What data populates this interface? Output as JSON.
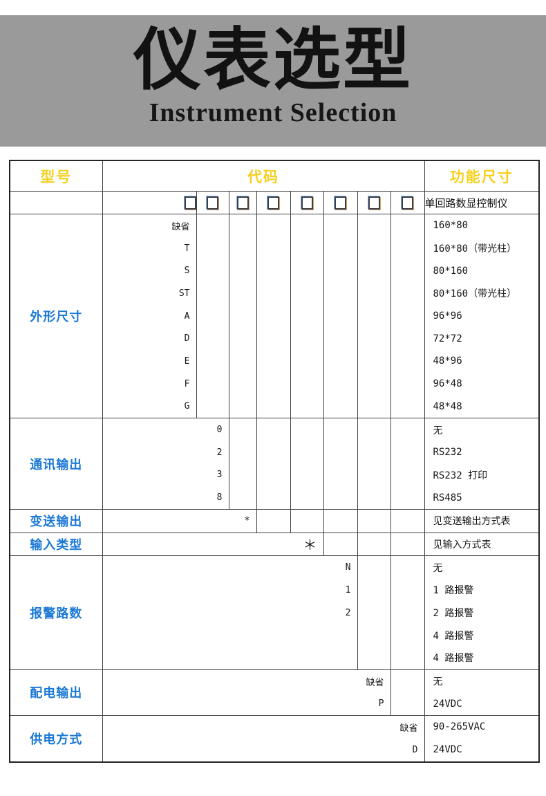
{
  "banner": {
    "title": "仪表选型",
    "subtitle": "Instrument Selection",
    "bg_color": "#999a99"
  },
  "table": {
    "header": {
      "model": "型号",
      "code": "代码",
      "function": "功能尺寸",
      "bg_color": "#cb3245",
      "text_color": "#f5d020"
    },
    "label_color": "#1a78d6",
    "checkbox_row": {
      "checkbox_count": 8,
      "function": "单回路数显控制仪"
    },
    "sections": [
      {
        "id": "shape-size",
        "label": "外形尺寸",
        "code_span": 1,
        "codes": [
          "缺省",
          "T",
          "S",
          "ST",
          "A",
          "D",
          "E",
          "F",
          "G"
        ],
        "functions": [
          "160*80",
          "160*80（带光柱）",
          "80*160",
          "80*160（带光柱）",
          "96*96",
          "72*72",
          "48*96",
          "96*48",
          "48*48"
        ]
      },
      {
        "id": "communication-output",
        "label": "通讯输出",
        "code_span": 2,
        "codes": [
          "0",
          "2",
          "3",
          "8"
        ],
        "functions": [
          "无",
          "RS232",
          "RS232 打印",
          "RS485"
        ]
      },
      {
        "id": "transmit-output",
        "label": "变送输出",
        "code_span": 3,
        "codes": [
          "*"
        ],
        "functions": [
          "见变送输出方式表"
        ]
      },
      {
        "id": "input-type",
        "label": "输入类型",
        "code_span": 5,
        "codes": [
          "＊"
        ],
        "functions": [
          "见输入方式表"
        ]
      },
      {
        "id": "alarm-routes",
        "label": "报警路数",
        "code_span": 6,
        "codes": [
          "N",
          "1",
          "2",
          "",
          ""
        ],
        "functions": [
          "无",
          "1 路报警",
          "2 路报警",
          "4 路报警",
          "4 路报警"
        ]
      },
      {
        "id": "power-distribution-output",
        "label": "配电输出",
        "code_span": 7,
        "codes": [
          "缺省",
          "P"
        ],
        "functions": [
          "无",
          "24VDC"
        ]
      },
      {
        "id": "power-supply-mode",
        "label": "供电方式",
        "code_span": 8,
        "codes": [
          "缺省",
          "D"
        ],
        "functions": [
          "90-265VAC",
          "24VDC"
        ]
      }
    ]
  }
}
